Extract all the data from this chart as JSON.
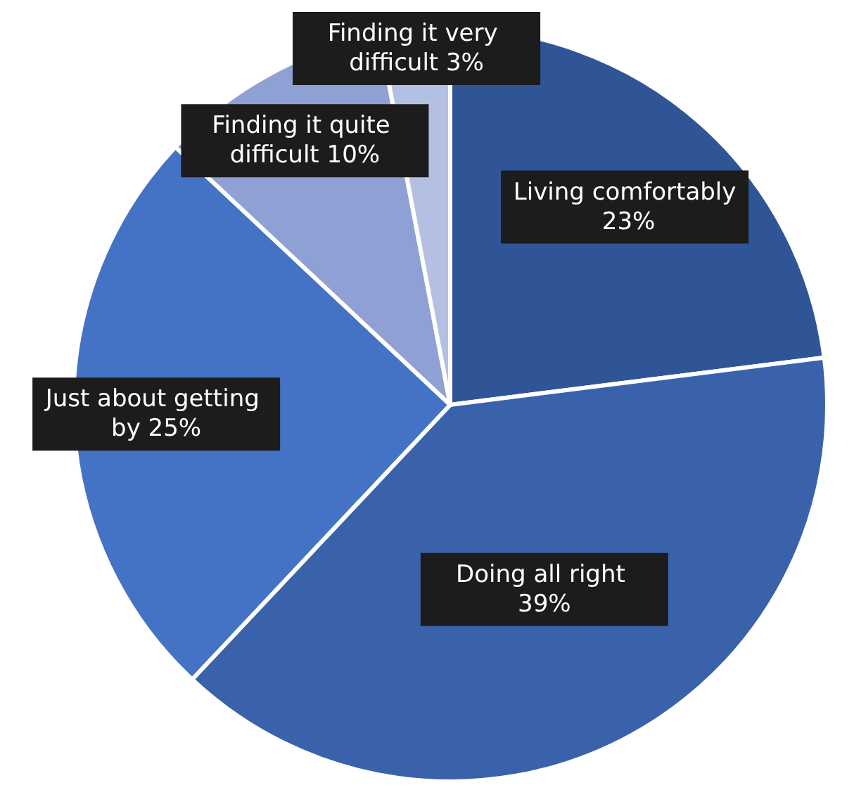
{
  "chart_data": {
    "type": "pie",
    "categories": [
      "Living comfortably",
      "Doing all right",
      "Just about getting by",
      "Finding it quite difficult",
      "Finding it very difficult"
    ],
    "values": [
      23,
      39,
      25,
      10,
      3
    ],
    "value_labels": [
      "23%",
      "39%",
      "25%",
      "10%",
      "3%"
    ],
    "colors": [
      "#2f5597",
      "#3a62ab",
      "#4472c4",
      "#8ea0d4",
      "#b4c0e2"
    ]
  }
}
